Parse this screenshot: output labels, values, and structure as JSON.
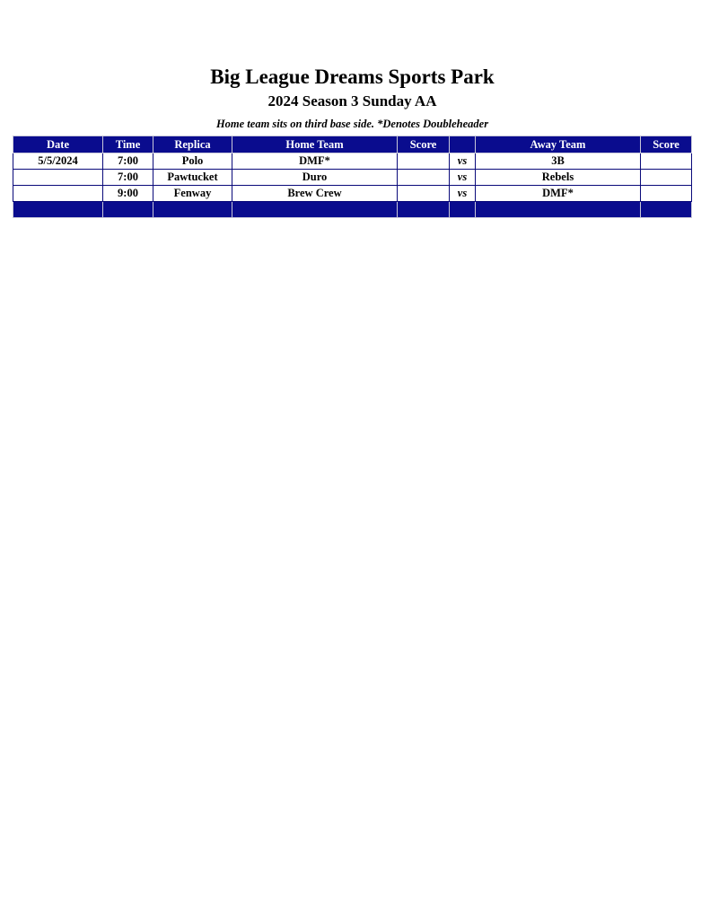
{
  "title": "Big League Dreams Sports Park",
  "subtitle": "2024 Season 3 Sunday AA",
  "note": "Home team sits on third base side.  *Denotes Doubleheader",
  "headers": [
    "Date",
    "Time",
    "Replica",
    "Home Team",
    "Score",
    "",
    "Away Team",
    "Score"
  ],
  "rows": [
    {
      "date": "5/5/2024",
      "time": "7:00",
      "replica": "Polo",
      "home": "DMF*",
      "home_score": "",
      "vs": "vs",
      "away": "3B",
      "away_score": ""
    },
    {
      "date": "",
      "time": "7:00",
      "replica": "Pawtucket",
      "home": "Duro",
      "home_score": "",
      "vs": "vs",
      "away": "Rebels",
      "away_score": ""
    },
    {
      "date": "",
      "time": "9:00",
      "replica": "Fenway",
      "home": "Brew Crew",
      "home_score": "",
      "vs": "vs",
      "away": "DMF*",
      "away_score": ""
    }
  ],
  "colors": {
    "header_bg": "#0a0c8e"
  }
}
